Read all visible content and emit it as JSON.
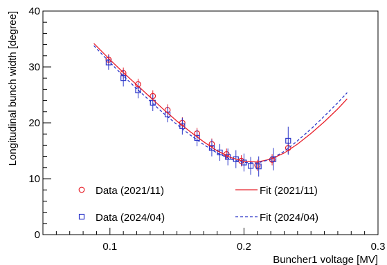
{
  "chart_data": {
    "type": "scatter",
    "title": "",
    "xlabel": "Buncher1 voltage [MV]",
    "ylabel": "Longitudinal bunch width [degree]",
    "xlim": [
      0.05,
      0.3
    ],
    "ylim": [
      0,
      40
    ],
    "x_ticks": [
      0.1,
      0.2,
      0.3
    ],
    "x_tick_labels": [
      "0.1",
      "0.2",
      "0.3"
    ],
    "y_ticks": [
      0,
      10,
      20,
      30,
      40
    ],
    "y_tick_labels": [
      "0",
      "10",
      "20",
      "30",
      "40"
    ],
    "grid": false,
    "legend_placement": "bottom",
    "series": [
      {
        "name": "Data (2021/11)",
        "kind": "points",
        "marker": "circle-open",
        "color": "#e8202a",
        "points": [
          {
            "x": 0.099,
            "y": 31.3,
            "err": 1.0
          },
          {
            "x": 0.11,
            "y": 28.9,
            "err": 1.0
          },
          {
            "x": 0.121,
            "y": 26.9,
            "err": 1.0
          },
          {
            "x": 0.132,
            "y": 24.8,
            "err": 1.0
          },
          {
            "x": 0.143,
            "y": 22.3,
            "err": 1.0
          },
          {
            "x": 0.154,
            "y": 20.0,
            "err": 1.0
          },
          {
            "x": 0.165,
            "y": 18.1,
            "err": 1.0
          },
          {
            "x": 0.176,
            "y": 16.2,
            "err": 1.0
          },
          {
            "x": 0.187,
            "y": 14.4,
            "err": 1.0
          },
          {
            "x": 0.198,
            "y": 13.2,
            "err": 1.0
          },
          {
            "x": 0.21,
            "y": 12.4,
            "err": 1.0
          },
          {
            "x": 0.221,
            "y": 13.4,
            "err": 1.0
          },
          {
            "x": 0.233,
            "y": 15.5,
            "err": 1.0
          }
        ]
      },
      {
        "name": "Data (2024/04)",
        "kind": "points",
        "marker": "square-open",
        "color": "#2a35c8",
        "points": [
          {
            "x": 0.099,
            "y": 30.8,
            "err": 1.3
          },
          {
            "x": 0.11,
            "y": 28.0,
            "err": 1.5
          },
          {
            "x": 0.121,
            "y": 25.8,
            "err": 1.4
          },
          {
            "x": 0.132,
            "y": 23.6,
            "err": 1.5
          },
          {
            "x": 0.143,
            "y": 21.5,
            "err": 1.4
          },
          {
            "x": 0.154,
            "y": 19.4,
            "err": 1.5
          },
          {
            "x": 0.165,
            "y": 17.3,
            "err": 1.5
          },
          {
            "x": 0.176,
            "y": 15.5,
            "err": 1.5
          },
          {
            "x": 0.182,
            "y": 14.7,
            "err": 1.5
          },
          {
            "x": 0.188,
            "y": 13.9,
            "err": 1.5
          },
          {
            "x": 0.194,
            "y": 13.5,
            "err": 1.6
          },
          {
            "x": 0.2,
            "y": 12.9,
            "err": 1.6
          },
          {
            "x": 0.205,
            "y": 12.3,
            "err": 1.6
          },
          {
            "x": 0.211,
            "y": 12.2,
            "err": 1.8
          },
          {
            "x": 0.222,
            "y": 13.5,
            "err": 2.0
          },
          {
            "x": 0.233,
            "y": 16.8,
            "err": 2.5
          }
        ]
      },
      {
        "name": "Fit (2021/11)",
        "kind": "line",
        "dash": "solid",
        "color": "#e8202a",
        "points": [
          {
            "x": 0.088,
            "y": 34.2
          },
          {
            "x": 0.1,
            "y": 31.3
          },
          {
            "x": 0.11,
            "y": 29.0
          },
          {
            "x": 0.12,
            "y": 26.8
          },
          {
            "x": 0.13,
            "y": 24.6
          },
          {
            "x": 0.14,
            "y": 22.4
          },
          {
            "x": 0.15,
            "y": 20.3
          },
          {
            "x": 0.16,
            "y": 18.4
          },
          {
            "x": 0.17,
            "y": 16.6
          },
          {
            "x": 0.18,
            "y": 15.0
          },
          {
            "x": 0.19,
            "y": 13.8
          },
          {
            "x": 0.2,
            "y": 13.1
          },
          {
            "x": 0.21,
            "y": 13.0
          },
          {
            "x": 0.22,
            "y": 13.5
          },
          {
            "x": 0.23,
            "y": 14.6
          },
          {
            "x": 0.24,
            "y": 16.2
          },
          {
            "x": 0.25,
            "y": 18.1
          },
          {
            "x": 0.26,
            "y": 20.2
          },
          {
            "x": 0.27,
            "y": 22.5
          },
          {
            "x": 0.277,
            "y": 24.3
          }
        ]
      },
      {
        "name": "Fit (2024/04)",
        "kind": "line",
        "dash": "dashed",
        "color": "#2a35c8",
        "points": [
          {
            "x": 0.088,
            "y": 33.8
          },
          {
            "x": 0.1,
            "y": 30.8
          },
          {
            "x": 0.11,
            "y": 28.4
          },
          {
            "x": 0.12,
            "y": 26.1
          },
          {
            "x": 0.13,
            "y": 23.9
          },
          {
            "x": 0.14,
            "y": 21.7
          },
          {
            "x": 0.15,
            "y": 19.7
          },
          {
            "x": 0.16,
            "y": 17.8
          },
          {
            "x": 0.17,
            "y": 16.1
          },
          {
            "x": 0.18,
            "y": 14.6
          },
          {
            "x": 0.19,
            "y": 13.5
          },
          {
            "x": 0.2,
            "y": 12.9
          },
          {
            "x": 0.21,
            "y": 12.8
          },
          {
            "x": 0.22,
            "y": 13.5
          },
          {
            "x": 0.23,
            "y": 14.9
          },
          {
            "x": 0.24,
            "y": 16.8
          },
          {
            "x": 0.25,
            "y": 18.9
          },
          {
            "x": 0.26,
            "y": 21.2
          },
          {
            "x": 0.27,
            "y": 23.6
          },
          {
            "x": 0.277,
            "y": 25.4
          }
        ]
      }
    ]
  }
}
